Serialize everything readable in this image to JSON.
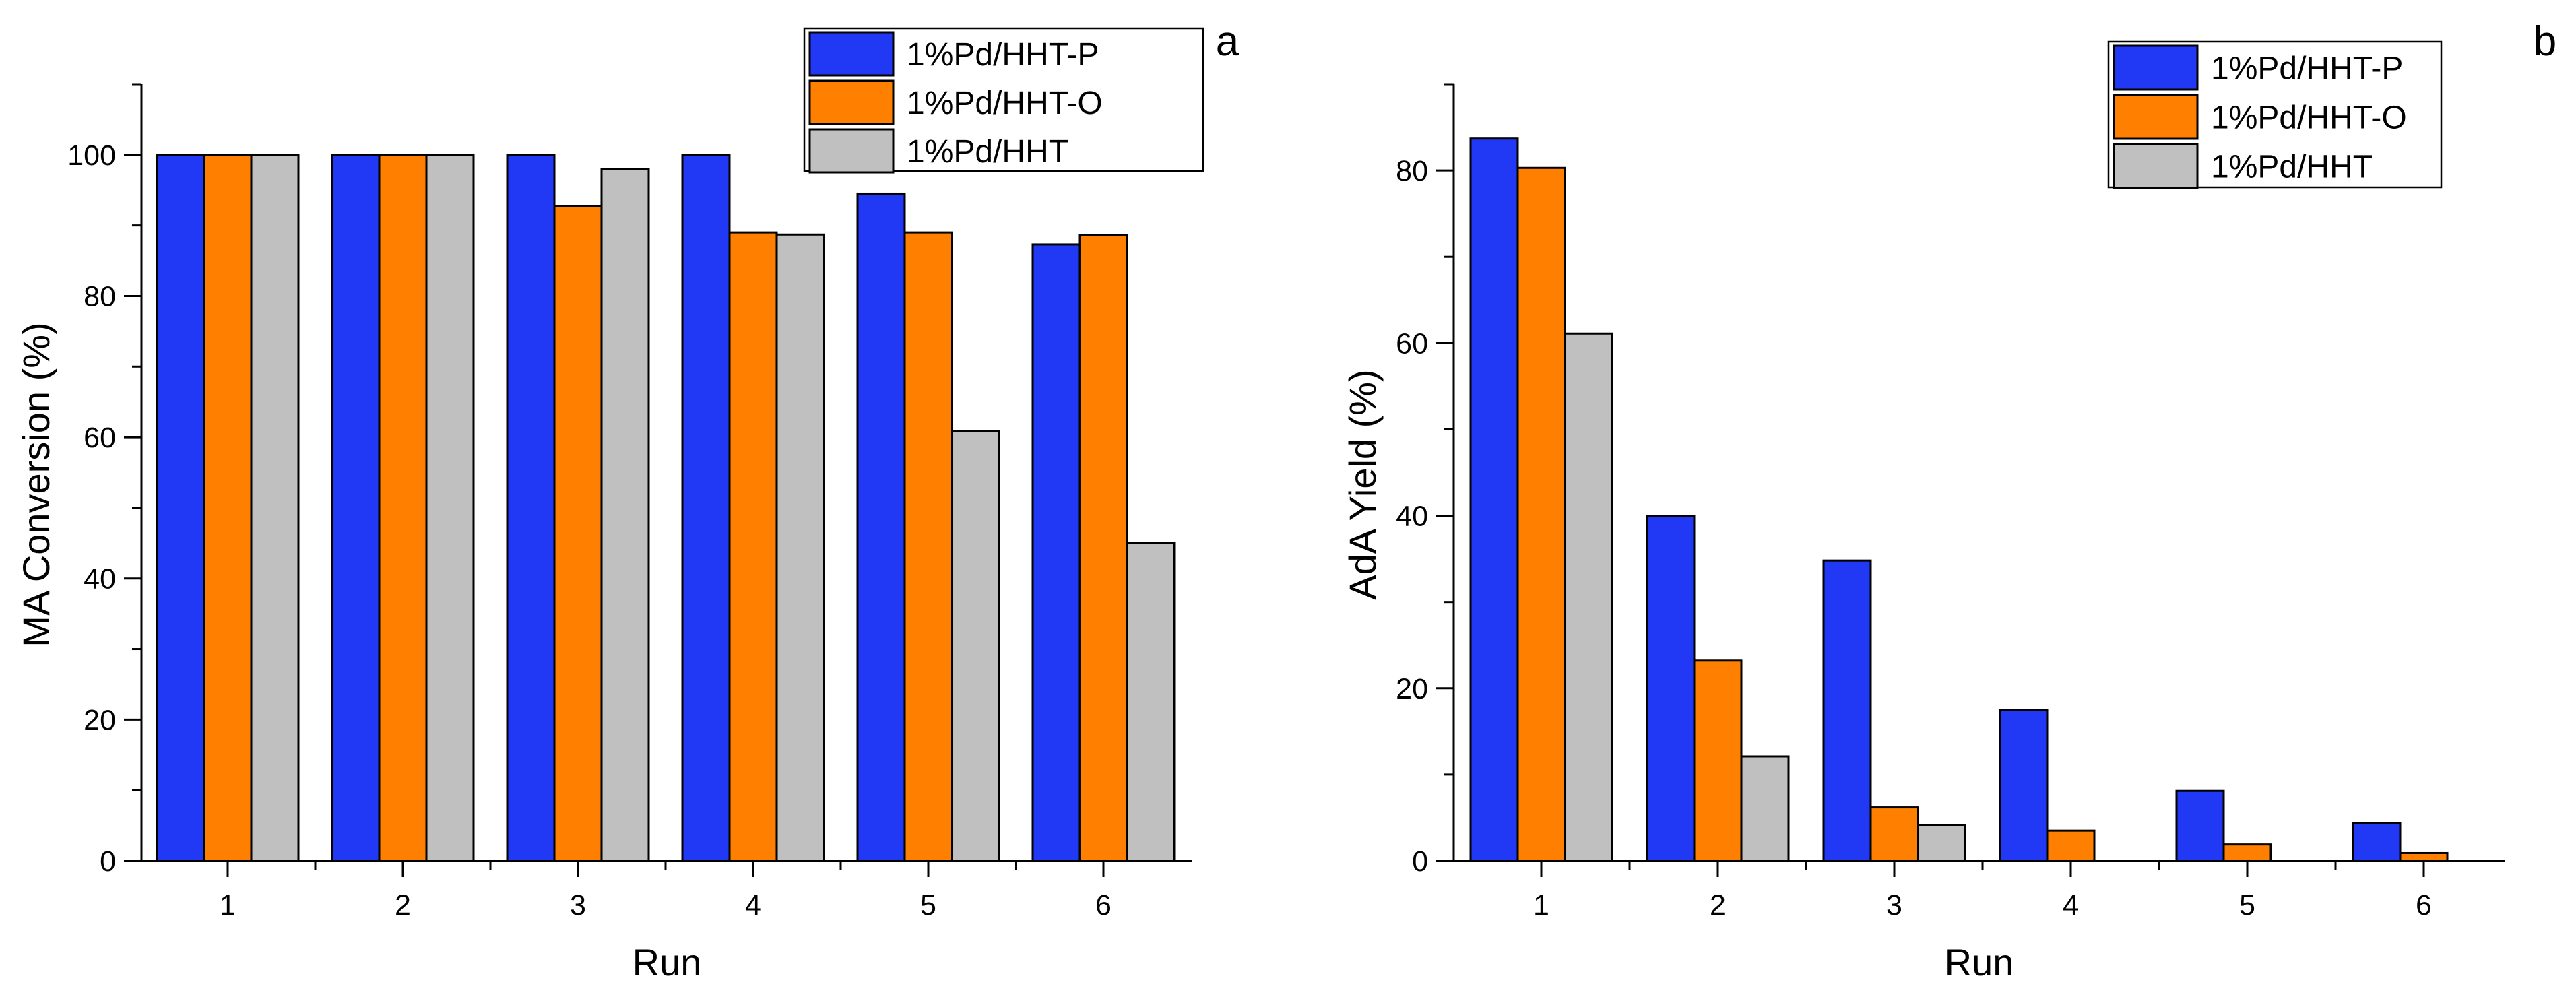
{
  "chart_data": [
    {
      "panel_label": "a",
      "type": "bar",
      "categories": [
        "1",
        "2",
        "3",
        "4",
        "5",
        "6"
      ],
      "series": [
        {
          "name": "1%Pd/HHT-P",
          "color": "#2138f5",
          "values": [
            100,
            100,
            100,
            100,
            94.5,
            87.3
          ]
        },
        {
          "name": "1%Pd/HHT-O",
          "color": "#ff8000",
          "values": [
            100,
            100,
            92.7,
            89,
            89,
            88.6
          ]
        },
        {
          "name": "1%Pd/HHT",
          "color": "#c0c0c0",
          "values": [
            100,
            100,
            98,
            88.7,
            60.9,
            45
          ]
        }
      ],
      "xlabel": "Run",
      "ylabel": "MA Conversion (%)",
      "ylim": [
        0,
        110
      ],
      "yticks": [
        0,
        20,
        40,
        60,
        80,
        100
      ],
      "legend": "top-right"
    },
    {
      "panel_label": "b",
      "type": "bar",
      "categories": [
        "1",
        "2",
        "3",
        "4",
        "5",
        "6"
      ],
      "series": [
        {
          "name": "1%Pd/HHT-P",
          "color": "#2138f5",
          "values": [
            83.7,
            40,
            34.8,
            17.5,
            8.1,
            4.4
          ]
        },
        {
          "name": "1%Pd/HHT-O",
          "color": "#ff8000",
          "values": [
            80.3,
            23.2,
            6.2,
            3.5,
            1.9,
            0.9
          ]
        },
        {
          "name": "1%Pd/HHT",
          "color": "#c0c0c0",
          "values": [
            61.1,
            12.1,
            4.1,
            0,
            0,
            0
          ]
        }
      ],
      "xlabel": "Run",
      "ylabel": "AdA Yield (%)",
      "ylim": [
        0,
        90
      ],
      "yticks": [
        0,
        20,
        40,
        60,
        80
      ],
      "legend": "top-right"
    }
  ]
}
